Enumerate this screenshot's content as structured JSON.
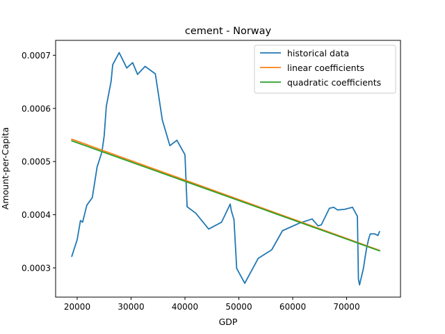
{
  "chart_data": {
    "type": "line",
    "title": "cement - Norway",
    "xlabel": "GDP",
    "ylabel": "Amount-per-Capita",
    "xlim": [
      16000,
      80000
    ],
    "ylim": [
      0.000245,
      0.000728
    ],
    "xticks": [
      20000,
      30000,
      40000,
      50000,
      60000,
      70000
    ],
    "xtick_labels": [
      "20000",
      "30000",
      "40000",
      "50000",
      "60000",
      "70000"
    ],
    "yticks": [
      0.0003,
      0.0004,
      0.0005,
      0.0006,
      0.0007
    ],
    "ytick_labels": [
      "0.0003",
      "0.0004",
      "0.0005",
      "0.0006",
      "0.0007"
    ],
    "grid": false,
    "legend_position": "top-right",
    "series": [
      {
        "name": "historical data",
        "color": "#1f77b4",
        "x": [
          19000,
          20000,
          20600,
          21000,
          21800,
          22800,
          23700,
          24600,
          25000,
          25400,
          26300,
          26600,
          27800,
          29200,
          30300,
          31200,
          32600,
          34500,
          35800,
          37200,
          38500,
          40000,
          40300,
          40400,
          42000,
          44400,
          46800,
          48400,
          48600,
          49100,
          49600,
          51100,
          53600,
          56100,
          58100,
          61200,
          63600,
          64700,
          65300,
          66800,
          67600,
          68300,
          69600,
          71100,
          72000,
          72200,
          72400,
          73100,
          73700,
          74100,
          74400,
          75200,
          75800,
          76100
        ],
        "y": [
          0.000322,
          0.000353,
          0.000389,
          0.000386,
          0.000418,
          0.000432,
          0.00049,
          0.000518,
          0.000548,
          0.000604,
          0.000651,
          0.000682,
          0.000705,
          0.000676,
          0.000686,
          0.000664,
          0.000679,
          0.000665,
          0.000578,
          0.00053,
          0.00054,
          0.000513,
          0.00044,
          0.000415,
          0.000403,
          0.000373,
          0.000386,
          0.00042,
          0.000408,
          0.000391,
          0.000299,
          0.000271,
          0.000318,
          0.000334,
          0.00037,
          0.000384,
          0.000392,
          0.000379,
          0.000381,
          0.000412,
          0.000414,
          0.000409,
          0.00041,
          0.000414,
          0.000397,
          0.000279,
          0.000268,
          0.000298,
          0.000337,
          0.000355,
          0.000364,
          0.000364,
          0.000361,
          0.000368
        ]
      },
      {
        "name": "linear coefficients",
        "color": "#ff7f0e",
        "x": [
          19000,
          76100
        ],
        "y": [
          0.000542,
          0.000333
        ]
      },
      {
        "name": "quadratic coefficients",
        "color": "#2ca02c",
        "x": [
          19000,
          76100
        ],
        "y": [
          0.000539,
          0.000332
        ]
      }
    ]
  }
}
